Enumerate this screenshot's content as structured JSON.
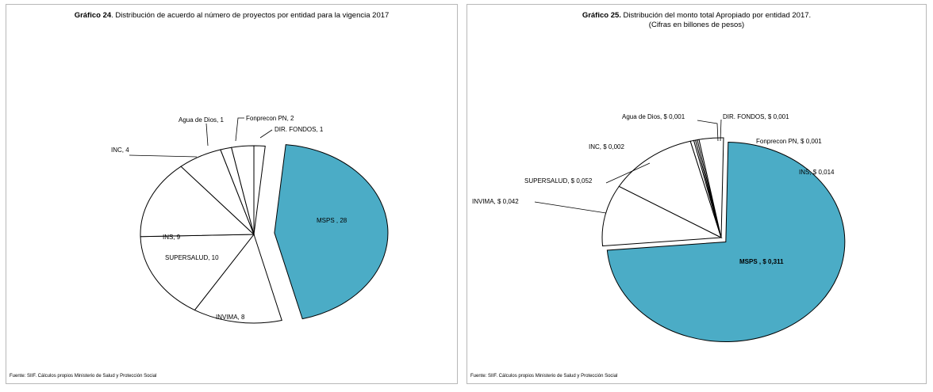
{
  "chart_data": [
    {
      "type": "pie",
      "title_bold": "Gráfico 24",
      "title_rest": ". Distribución de acuerdo al número de proyectos por entidad para la vigencia 2017",
      "source": "Fuente: SIIF. Cálculos propios Ministerio de Salud y Protección Social",
      "slices": [
        {
          "label": "MSPS , 28",
          "value": 28,
          "color": "#4bacc6",
          "exploded": true
        },
        {
          "label": "INVIMA, 8",
          "value": 8,
          "color": "#ffffff"
        },
        {
          "label": "SUPERSALUD, 10",
          "value": 10,
          "color": "#ffffff"
        },
        {
          "label": "INS, 9",
          "value": 9,
          "color": "#ffffff"
        },
        {
          "label": "INC, 4",
          "value": 4,
          "color": "#ffffff"
        },
        {
          "label": "Agua de Dios, 1",
          "value": 1,
          "color": "#ffffff"
        },
        {
          "label": "Fonprecon PN, 2",
          "value": 2,
          "color": "#ffffff"
        },
        {
          "label": "DIR. FONDOS, 1",
          "value": 1,
          "color": "#ffffff"
        }
      ]
    },
    {
      "type": "pie",
      "title_bold": "Gráfico 25.",
      "title_rest": " Distribución del monto total Apropiado por entidad  2017.",
      "subtitle": "(Cifras en billones de pesos)",
      "source": "Fuente: SIIF. Cálculos propios Ministerio de Salud y Protección Social",
      "slices": [
        {
          "label": "MSPS ,  $ 0,311",
          "value": 0.311,
          "color": "#4bacc6",
          "exploded": true
        },
        {
          "label": "INVIMA,  $ 0,042",
          "value": 0.042,
          "color": "#ffffff"
        },
        {
          "label": "SUPERSALUD,  $ 0,052",
          "value": 0.052,
          "color": "#ffffff"
        },
        {
          "label": "INC,  $ 0,002",
          "value": 0.002,
          "color": "#ffffff"
        },
        {
          "label": "Agua de Dios,  $ 0,001",
          "value": 0.001,
          "color": "#ffffff"
        },
        {
          "label": "DIR. FONDOS,  $ 0,001",
          "value": 0.001,
          "color": "#ffffff"
        },
        {
          "label": "Fonprecon PN,  $ 0,001",
          "value": 0.001,
          "color": "#ffffff"
        },
        {
          "label": "INS,  $ 0,014",
          "value": 0.014,
          "color": "#ffffff"
        }
      ]
    }
  ]
}
